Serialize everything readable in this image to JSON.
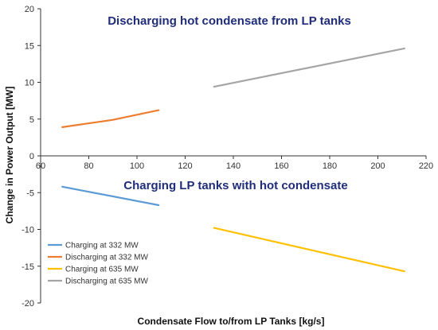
{
  "chart_data": {
    "type": "line",
    "title": "",
    "xlabel": "Condensate Flow to/from LP Tanks [kg/s]",
    "ylabel": "Change in Power Output [MW]",
    "xlim": [
      60,
      220
    ],
    "ylim": [
      -20,
      20
    ],
    "x_ticks": [
      60,
      80,
      100,
      120,
      140,
      160,
      180,
      200,
      220
    ],
    "y_ticks": [
      -20,
      -15,
      -10,
      -5,
      0,
      5,
      10,
      15,
      20
    ],
    "grid": "none",
    "legend_position": "bottom-left",
    "annotations": [
      {
        "text": "Discharging hot condensate from LP tanks",
        "location": "upper"
      },
      {
        "text": "Charging LP tanks with hot condensate",
        "location": "lower"
      }
    ],
    "series": [
      {
        "name": "Charging at 332 MW",
        "color": "#5b9bd5",
        "x": [
          69,
          109
        ],
        "y": [
          -4.2,
          -6.7
        ]
      },
      {
        "name": "Discharging at 332 MW",
        "color": "#ed7d31",
        "x": [
          69,
          90,
          109
        ],
        "y": [
          3.9,
          4.9,
          6.2
        ]
      },
      {
        "name": "Charging at 635 MW",
        "color": "#ffc000",
        "x": [
          132,
          211
        ],
        "y": [
          -9.8,
          -15.7
        ]
      },
      {
        "name": "Discharging at 635 MW",
        "color": "#a5a5a5",
        "x": [
          132,
          211
        ],
        "y": [
          9.4,
          14.6
        ]
      }
    ]
  }
}
